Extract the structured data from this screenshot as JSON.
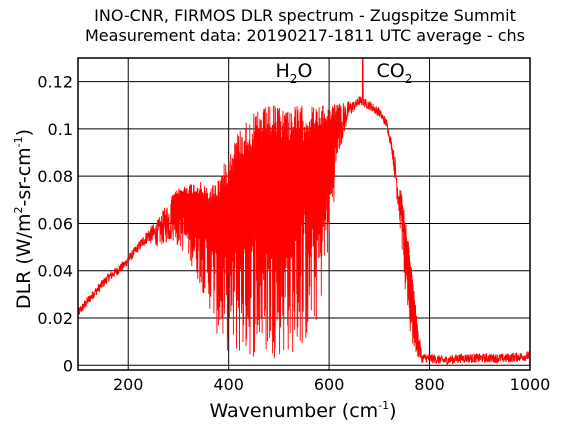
{
  "chart_data": {
    "type": "line",
    "title": [
      "INO-CNR, FIRMOS DLR spectrum - Zugspitze Summit",
      "Measurement data: 20190217-1811 UTC average - chs"
    ],
    "xlabel": {
      "text": "Wavenumber (cm",
      "sup": "-1",
      "close": ")"
    },
    "ylabel": {
      "pre": "DLR (W/m",
      "sup1": "2",
      "mid": "-sr-cm",
      "sup2": "-1",
      "close": ")"
    },
    "xlim": [
      100,
      1000
    ],
    "ylim": [
      -0.002,
      0.13
    ],
    "xticks": [
      200,
      400,
      600,
      800,
      1000
    ],
    "xtick_labels": [
      "200",
      "400",
      "600",
      "800",
      "1000"
    ],
    "yticks": [
      0,
      0.02,
      0.04,
      0.06,
      0.08,
      0.1,
      0.12
    ],
    "ytick_labels": [
      "0",
      "0.02",
      "0.04",
      "0.06",
      "0.08",
      "0.1",
      "0.12"
    ],
    "grid": true,
    "annotations": [
      {
        "text": "H",
        "sub": "2",
        "tail": "O",
        "x": 530,
        "y": 0.122
      },
      {
        "text": "CO",
        "sub": "2",
        "tail": "",
        "x": 730,
        "y": 0.122
      }
    ],
    "colors": {
      "series": "#ff0000",
      "axes": "#000000",
      "grid": "#000000"
    },
    "series": [
      {
        "x": [
          100,
          130,
          160,
          190,
          220,
          240,
          260,
          280,
          300,
          320,
          340,
          360,
          380,
          400,
          420,
          440,
          460,
          480,
          500,
          520,
          540,
          560,
          580,
          600,
          620,
          640,
          660,
          680,
          700,
          715,
          725,
          735,
          745,
          755,
          765,
          775,
          785,
          800,
          830,
          860,
          900,
          950,
          1000
        ],
        "envelope_max": [
          0.02,
          0.028,
          0.035,
          0.043,
          0.052,
          0.058,
          0.062,
          0.07,
          0.075,
          0.077,
          0.078,
          0.075,
          0.08,
          0.09,
          0.1,
          0.105,
          0.108,
          0.11,
          0.11,
          0.11,
          0.11,
          0.11,
          0.11,
          0.11,
          0.111,
          0.112,
          0.112,
          0.111,
          0.108,
          0.103,
          0.095,
          0.085,
          0.072,
          0.058,
          0.04,
          0.02,
          0.005,
          0.004,
          0.003,
          0.003,
          0.002,
          0.003,
          0.004
        ],
        "envelope_min": [
          0.02,
          0.028,
          0.035,
          0.04,
          0.048,
          0.052,
          0.05,
          0.052,
          0.05,
          0.045,
          0.035,
          0.025,
          0.01,
          0.005,
          0.003,
          0.003,
          0.003,
          0.003,
          0.003,
          0.004,
          0.005,
          0.01,
          0.02,
          0.05,
          0.09,
          0.105,
          0.11,
          0.108,
          0.105,
          0.1,
          0.09,
          0.07,
          0.05,
          0.02,
          0.008,
          0.003,
          0.001,
          0.001,
          0.0,
          0.001,
          0.001,
          0.001,
          0.002
        ],
        "peak": {
          "x": 667,
          "y": 0.13
        }
      }
    ]
  }
}
